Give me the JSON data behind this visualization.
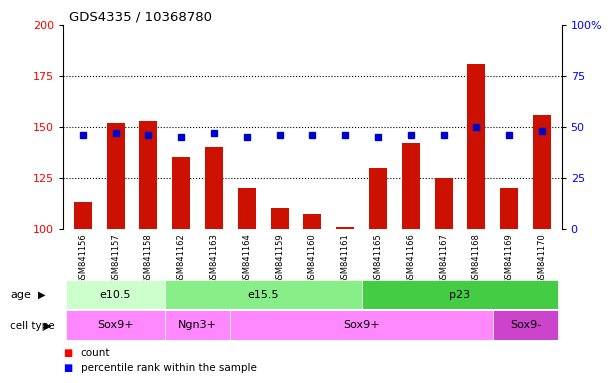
{
  "title": "GDS4335 / 10368780",
  "samples": [
    "GSM841156",
    "GSM841157",
    "GSM841158",
    "GSM841162",
    "GSM841163",
    "GSM841164",
    "GSM841159",
    "GSM841160",
    "GSM841161",
    "GSM841165",
    "GSM841166",
    "GSM841167",
    "GSM841168",
    "GSM841169",
    "GSM841170"
  ],
  "red_values": [
    113,
    152,
    153,
    135,
    140,
    120,
    110,
    107,
    101,
    130,
    142,
    125,
    181,
    120,
    156
  ],
  "blue_pct": [
    46,
    47,
    46,
    45,
    47,
    45,
    46,
    46,
    46,
    45,
    46,
    46,
    50,
    46,
    48
  ],
  "ymin": 100,
  "ymax": 200,
  "yticks_left": [
    100,
    125,
    150,
    175,
    200
  ],
  "yticks_right_vals": [
    0,
    25,
    50,
    75,
    100
  ],
  "yticks_right_labels": [
    "0",
    "25",
    "50",
    "75",
    "100%"
  ],
  "age_groups": [
    {
      "label": "e10.5",
      "start": 0,
      "end": 3,
      "color": "#ccffcc"
    },
    {
      "label": "e15.5",
      "start": 3,
      "end": 9,
      "color": "#88ee88"
    },
    {
      "label": "p23",
      "start": 9,
      "end": 15,
      "color": "#44dd44"
    }
  ],
  "cell_groups": [
    {
      "label": "Sox9+",
      "start": 0,
      "end": 3,
      "color": "#ff88ff"
    },
    {
      "label": "Ngn3+",
      "start": 3,
      "end": 5,
      "color": "#ff88ff"
    },
    {
      "label": "Sox9+",
      "start": 5,
      "end": 13,
      "color": "#ff88ff"
    },
    {
      "label": "Sox9-",
      "start": 13,
      "end": 15,
      "color": "#cc44cc"
    }
  ],
  "bar_color": "#cc1100",
  "dot_color": "#0000cc",
  "label_bg": "#cccccc",
  "bar_width": 0.55
}
